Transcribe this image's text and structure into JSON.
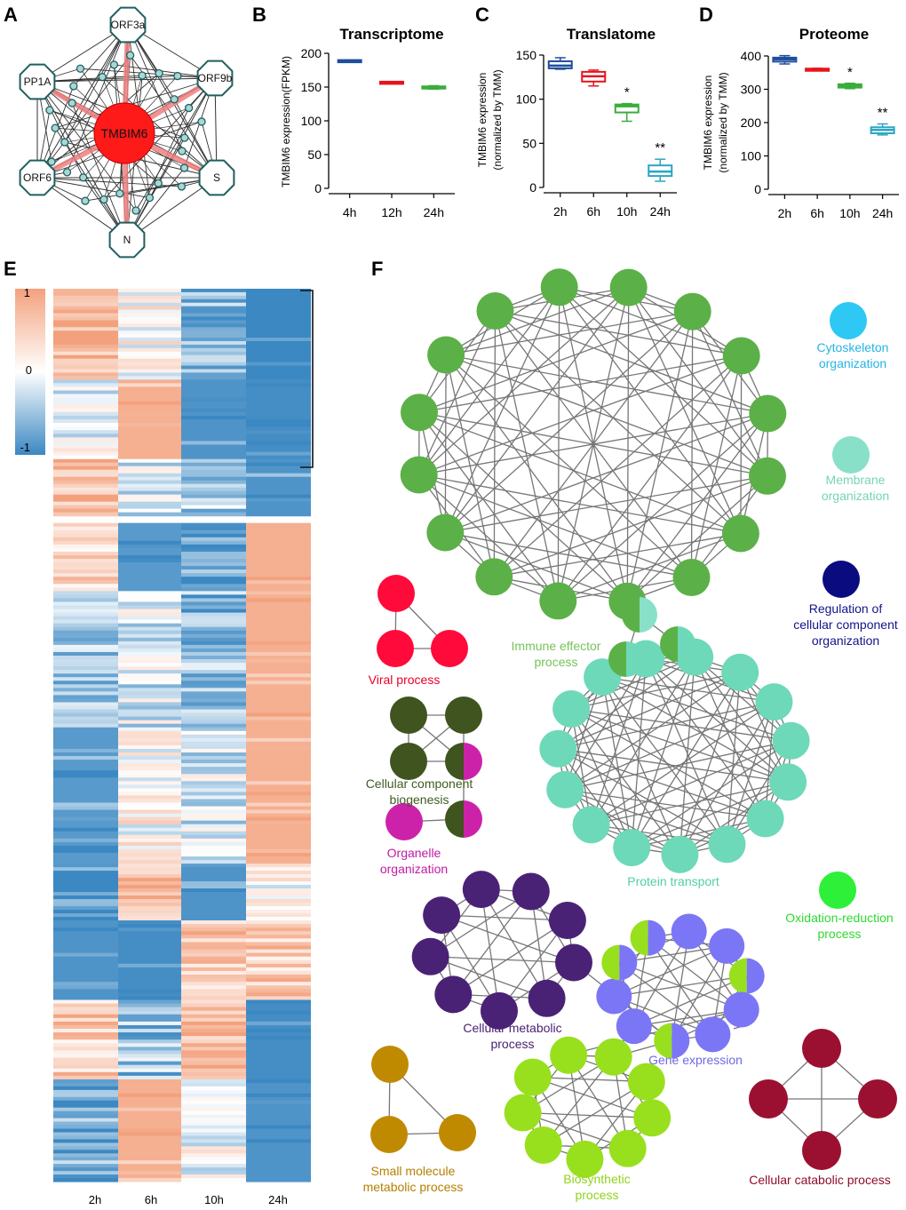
{
  "panels": {
    "A": "A",
    "B": "B",
    "C": "C",
    "D": "D",
    "E": "E",
    "F": "F"
  },
  "network": {
    "center": "TMBIM6",
    "proteins": [
      "ORF3a",
      "ORF9b",
      "S",
      "N",
      "ORF6",
      "PP1A"
    ],
    "colors": {
      "center": "#ff1a1a",
      "node_stroke": "#1f5f5f",
      "small_fill": "#a9d6d3",
      "highlight": "#f08080"
    }
  },
  "chart_data": [
    {
      "id": "B",
      "type": "box",
      "title": "Transcriptome",
      "ylabel": "TMBIM6 expression(FPKM)",
      "ylabel2": "",
      "categories": [
        "4h",
        "12h",
        "24h"
      ],
      "ylim": [
        0,
        200
      ],
      "yticks": [
        0,
        50,
        100,
        150,
        200
      ],
      "colors": [
        "#1f4e9c",
        "#e8141c",
        "#3aad3a"
      ],
      "boxes": [
        {
          "min": 188,
          "q1": 188,
          "median": 189,
          "q3": 190,
          "max": 190
        },
        {
          "min": 155,
          "q1": 155,
          "median": 157,
          "q3": 158,
          "max": 158
        },
        {
          "min": 147,
          "q1": 148,
          "median": 150,
          "q3": 151,
          "max": 152
        }
      ],
      "annotations": [
        "",
        "",
        ""
      ]
    },
    {
      "id": "C",
      "type": "box",
      "title": "Translatome",
      "ylabel": "TMBIM6 expression",
      "ylabel2": "(normalized by TMM)",
      "categories": [
        "2h",
        "6h",
        "10h",
        "24h"
      ],
      "ylim": [
        0,
        150
      ],
      "yticks": [
        0,
        50,
        100,
        150
      ],
      "colors": [
        "#1f4e9c",
        "#e8141c",
        "#3aad3a",
        "#2aa6c4"
      ],
      "boxes": [
        {
          "min": 134,
          "q1": 135,
          "median": 138,
          "q3": 143,
          "max": 147
        },
        {
          "min": 115,
          "q1": 120,
          "median": 126,
          "q3": 131,
          "max": 133
        },
        {
          "min": 75,
          "q1": 85,
          "median": 92,
          "q3": 94,
          "max": 95
        },
        {
          "min": 7,
          "q1": 13,
          "median": 18,
          "q3": 25,
          "max": 32
        }
      ],
      "annotations": [
        "",
        "",
        "*",
        "**"
      ]
    },
    {
      "id": "D",
      "type": "box",
      "title": "Proteome",
      "ylabel": "TMBIM6 expression",
      "ylabel2": "(normalized by TMM)",
      "categories": [
        "2h",
        "6h",
        "10h",
        "24h"
      ],
      "ylim": [
        0,
        400
      ],
      "yticks": [
        0,
        100,
        200,
        300,
        400
      ],
      "colors": [
        "#1f4e9c",
        "#e8141c",
        "#3aad3a",
        "#2aa6c4"
      ],
      "boxes": [
        {
          "min": 376,
          "q1": 383,
          "median": 390,
          "q3": 395,
          "max": 401
        },
        {
          "min": 358,
          "q1": 358,
          "median": 360,
          "q3": 362,
          "max": 363
        },
        {
          "min": 302,
          "q1": 305,
          "median": 310,
          "q3": 315,
          "max": 318
        },
        {
          "min": 163,
          "q1": 168,
          "median": 178,
          "q3": 186,
          "max": 196
        }
      ],
      "annotations": [
        "",
        "",
        "*",
        "**"
      ]
    },
    {
      "id": "E",
      "type": "heatmap",
      "columns": [
        "2h",
        "6h",
        "10h",
        "24h"
      ],
      "colorbar": {
        "max": "1",
        "mid": "0",
        "min": "-1",
        "low_color": "#3b88c2",
        "mid_color": "#ffffff",
        "high_color": "#f3a17d"
      },
      "blocks": [
        {
          "rows": 40,
          "pattern": [
            0.8,
            0.1,
            -0.6,
            -1.0
          ]
        },
        {
          "rows": 35,
          "pattern": [
            -0.1,
            0.85,
            -0.9,
            -0.95
          ]
        },
        {
          "rows": 25,
          "pattern": [
            0.75,
            -0.2,
            -0.4,
            -0.9
          ]
        },
        {
          "rows": 30,
          "pattern": [
            0.5,
            -0.85,
            -0.8,
            0.85
          ]
        },
        {
          "rows": 60,
          "pattern": [
            -0.5,
            -0.2,
            -0.55,
            0.85
          ]
        },
        {
          "rows": 60,
          "pattern": [
            -0.85,
            0.1,
            -0.2,
            0.85
          ]
        },
        {
          "rows": 25,
          "pattern": [
            -0.8,
            0.75,
            -0.9,
            0.0
          ]
        },
        {
          "rows": 35,
          "pattern": [
            -0.9,
            -0.95,
            0.55,
            0.55
          ]
        },
        {
          "rows": 35,
          "pattern": [
            0.55,
            -0.5,
            0.75,
            -0.95
          ]
        },
        {
          "rows": 45,
          "pattern": [
            -0.7,
            0.85,
            0.0,
            -0.9
          ]
        }
      ]
    },
    {
      "id": "F",
      "type": "network",
      "clusters": [
        {
          "name": "Immune effector process",
          "color": "#5cb048",
          "label_color": "#78c25a"
        },
        {
          "name": "Protein transport",
          "color": "#6dd9b8",
          "label_color": "#52cfa8"
        },
        {
          "name": "Viral process",
          "color": "#ff0a3a",
          "label_color": "#e8002b"
        },
        {
          "name": "Cellular component biogenesis",
          "color": "#3f541f",
          "label_color": "#3f5b1f"
        },
        {
          "name": "Organelle organization",
          "color": "#cc22aa",
          "label_color": "#c21aa3"
        },
        {
          "name": "Cellular metabolic process",
          "color": "#4a2275",
          "label_color": "#4a2175"
        },
        {
          "name": "Gene expression",
          "color": "#7b76f5",
          "label_color": "#6f6ae6"
        },
        {
          "name": "Biosynthetic process",
          "color": "#98e01e",
          "label_color": "#8fd31a"
        },
        {
          "name": "Small molecule metabolic process",
          "color": "#c08a00",
          "label_color": "#b57f00"
        },
        {
          "name": "Cellular catabolic process",
          "color": "#9b1030",
          "label_color": "#8f0c2b"
        },
        {
          "name": "Cytoskeleton organization",
          "color": "#2ec8f5",
          "label_color": "#27b3e3"
        },
        {
          "name": "Membrane organization",
          "color": "#89e0c8",
          "label_color": "#74d4b9"
        },
        {
          "name": "Regulation of cellular component organization",
          "color": "#0b0b80",
          "label_color": "#14148a"
        },
        {
          "name": "Oxidation-reduction process",
          "color": "#2ef038",
          "label_color": "#2fd92f"
        }
      ],
      "labels": {
        "cyto1": "Cytoskeleton",
        "cyto2": "organization",
        "memb1": "Membrane",
        "memb2": "organization",
        "reg1": "Regulation of",
        "reg2": "cellular component",
        "reg3": "organization",
        "ox1": "Oxidation-reduction",
        "ox2": "process",
        "imm1": "Immune effector",
        "imm2": "process",
        "viral": "Viral process",
        "ccb1": "Cellular component",
        "ccb2": "biogenesis",
        "org1": "Organelle",
        "org2": "organization",
        "pt": "Protein transport",
        "cmp1": "Cellular metabolic",
        "cmp2": "process",
        "ge": "Gene expression",
        "bio1": "Biosynthetic",
        "bio2": "process",
        "smm1": "Small molecule",
        "smm2": "metabolic process",
        "cat": "Cellular catabolic process"
      }
    }
  ]
}
